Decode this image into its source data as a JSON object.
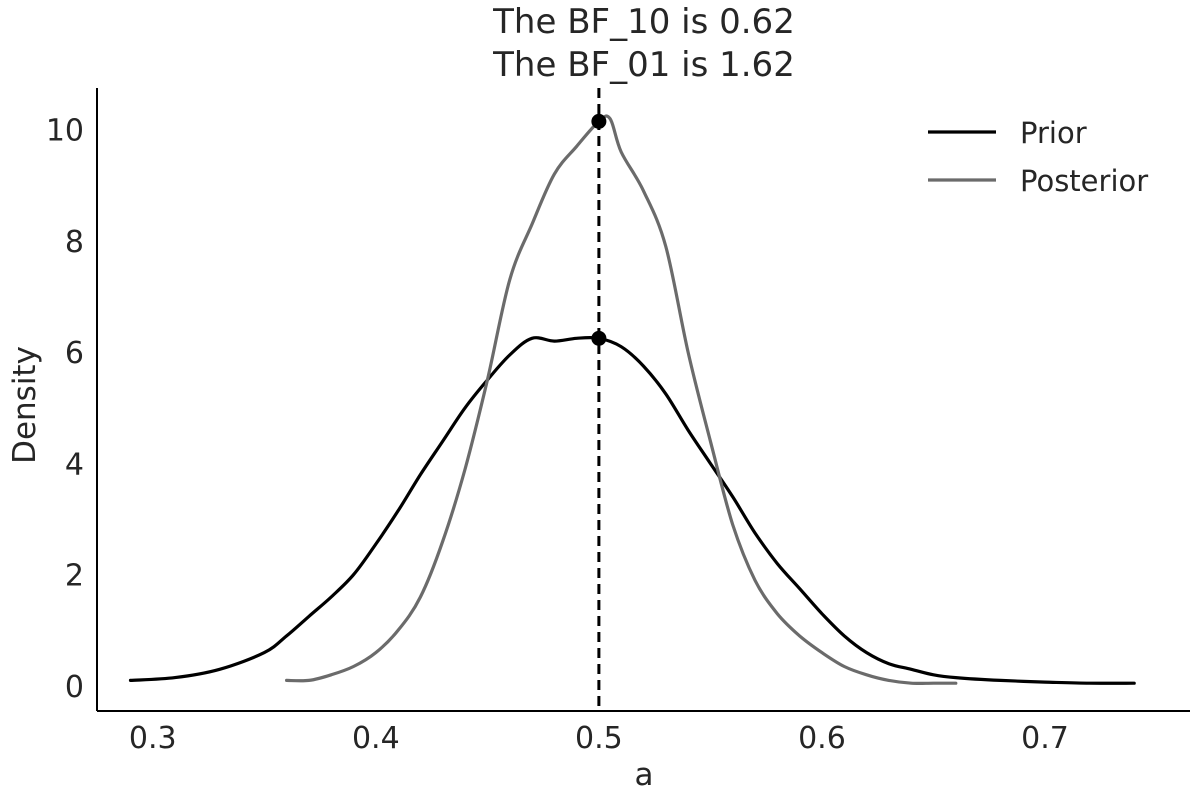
{
  "chart_data": {
    "type": "line",
    "title_lines": [
      "The BF_10 is 0.62",
      "The BF_01 is 1.62"
    ],
    "xlabel": "a",
    "ylabel": "Density",
    "xlim": [
      0.275,
      0.765
    ],
    "ylim": [
      -0.45,
      10.75
    ],
    "xticks": [
      0.3,
      0.4,
      0.5,
      0.6,
      0.7
    ],
    "xtick_labels": [
      "0.3",
      "0.4",
      "0.5",
      "0.6",
      "0.7"
    ],
    "yticks": [
      0,
      2,
      4,
      6,
      8,
      10
    ],
    "ytick_labels": [
      "0",
      "2",
      "4",
      "6",
      "8",
      "10"
    ],
    "grid": false,
    "legend_position": "top-right",
    "reference_line": {
      "x": 0.5,
      "style": "dashed",
      "color": "#000000"
    },
    "series": [
      {
        "name": "Prior",
        "color": "#000000",
        "x": [
          0.29,
          0.31,
          0.33,
          0.35,
          0.36,
          0.37,
          0.38,
          0.39,
          0.4,
          0.41,
          0.42,
          0.43,
          0.44,
          0.45,
          0.46,
          0.47,
          0.48,
          0.49,
          0.5,
          0.51,
          0.52,
          0.53,
          0.54,
          0.55,
          0.56,
          0.57,
          0.58,
          0.59,
          0.6,
          0.61,
          0.62,
          0.63,
          0.64,
          0.65,
          0.66,
          0.68,
          0.7,
          0.72,
          0.74
        ],
        "y": [
          0.1,
          0.15,
          0.3,
          0.6,
          0.9,
          1.25,
          1.6,
          2.0,
          2.55,
          3.15,
          3.8,
          4.4,
          5.0,
          5.5,
          5.95,
          6.25,
          6.2,
          6.25,
          6.25,
          6.1,
          5.75,
          5.25,
          4.6,
          4.0,
          3.4,
          2.75,
          2.2,
          1.75,
          1.3,
          0.9,
          0.6,
          0.4,
          0.3,
          0.2,
          0.15,
          0.1,
          0.07,
          0.05,
          0.05
        ]
      },
      {
        "name": "Posterior",
        "color": "#6b6b6b",
        "x": [
          0.36,
          0.37,
          0.38,
          0.39,
          0.4,
          0.41,
          0.42,
          0.43,
          0.44,
          0.45,
          0.46,
          0.47,
          0.48,
          0.49,
          0.5,
          0.505,
          0.51,
          0.52,
          0.53,
          0.54,
          0.55,
          0.56,
          0.57,
          0.58,
          0.59,
          0.6,
          0.61,
          0.62,
          0.63,
          0.64,
          0.65,
          0.66
        ],
        "y": [
          0.1,
          0.1,
          0.2,
          0.35,
          0.6,
          1.0,
          1.6,
          2.6,
          3.9,
          5.5,
          7.3,
          8.3,
          9.2,
          9.7,
          10.15,
          10.2,
          9.6,
          8.9,
          7.9,
          6.0,
          4.4,
          2.9,
          1.9,
          1.3,
          0.9,
          0.6,
          0.35,
          0.2,
          0.1,
          0.05,
          0.05,
          0.05
        ]
      }
    ],
    "markers": [
      {
        "series": "Posterior",
        "x": 0.5,
        "y": 10.15
      },
      {
        "series": "Prior",
        "x": 0.5,
        "y": 6.25
      }
    ]
  }
}
